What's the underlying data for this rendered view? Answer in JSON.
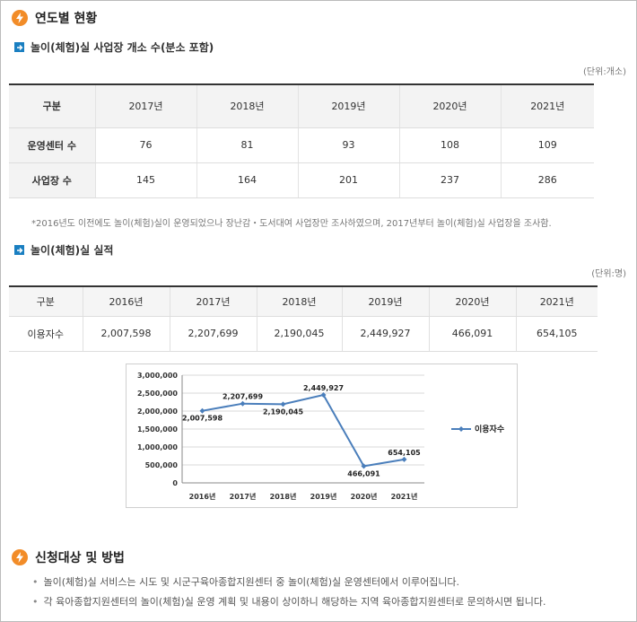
{
  "section1": {
    "title": "연도별 현황"
  },
  "sub1": {
    "title": "놀이(체험)실 사업장 개소 수(분소 포함)",
    "unit": "(단위:개소)"
  },
  "table1": {
    "headers": [
      "구분",
      "2017년",
      "2018년",
      "2019년",
      "2020년",
      "2021년"
    ],
    "rows": [
      [
        "운영센터 수",
        "76",
        "81",
        "93",
        "108",
        "109"
      ],
      [
        "사업장 수",
        "145",
        "164",
        "201",
        "237",
        "286"
      ]
    ]
  },
  "note": "*2016년도 이전에도 놀이(체험)실이 운영되었으나 장난감・도서대여 사업장만 조사하였으며, 2017년부터 놀이(체험)실 사업장을 조사함.",
  "sub2": {
    "title": "놀이(체험)실 실적",
    "unit": "(단위:명)"
  },
  "table2": {
    "headers": [
      "구분",
      "2016년",
      "2017년",
      "2018년",
      "2019년",
      "2020년",
      "2021년"
    ],
    "rows": [
      [
        "이용자수",
        "2,007,598",
        "2,207,699",
        "2,190,045",
        "2,449,927",
        "466,091",
        "654,105"
      ]
    ]
  },
  "chart_data": {
    "type": "line",
    "categories": [
      "2016년",
      "2017년",
      "2018년",
      "2019년",
      "2020년",
      "2021년"
    ],
    "series": [
      {
        "name": "이용자수",
        "values": [
          2007598,
          2207699,
          2190045,
          2449927,
          466091,
          654105
        ]
      }
    ],
    "data_labels": [
      "2,007,598",
      "2,207,699",
      "2,190,045",
      "2,449,927",
      "466,091",
      "654,105"
    ],
    "y_ticks": [
      "3,000,000",
      "2,500,000",
      "2,000,000",
      "1,500,000",
      "1,000,000",
      "500,000",
      "0"
    ],
    "ylim": [
      0,
      3000000
    ],
    "grid": true,
    "legend": "right",
    "color": "#4a7ebb"
  },
  "section2": {
    "title": "신청대상 및 방법"
  },
  "bullets": [
    "놀이(체험)실 서비스는 시도 및 시군구육아종합지원센터 중 놀이(체험)실 운영센터에서 이루어집니다.",
    "각 육아종합지원센터의 놀이(체험)실 운영 계획 및 내용이 상이하니 해당하는 지역 육아종합지원센터로 문의하시면 됩니다."
  ],
  "colors": {
    "accent": "#f28c28",
    "subIcon": "#1a7fc1",
    "line": "#4a7ebb"
  }
}
